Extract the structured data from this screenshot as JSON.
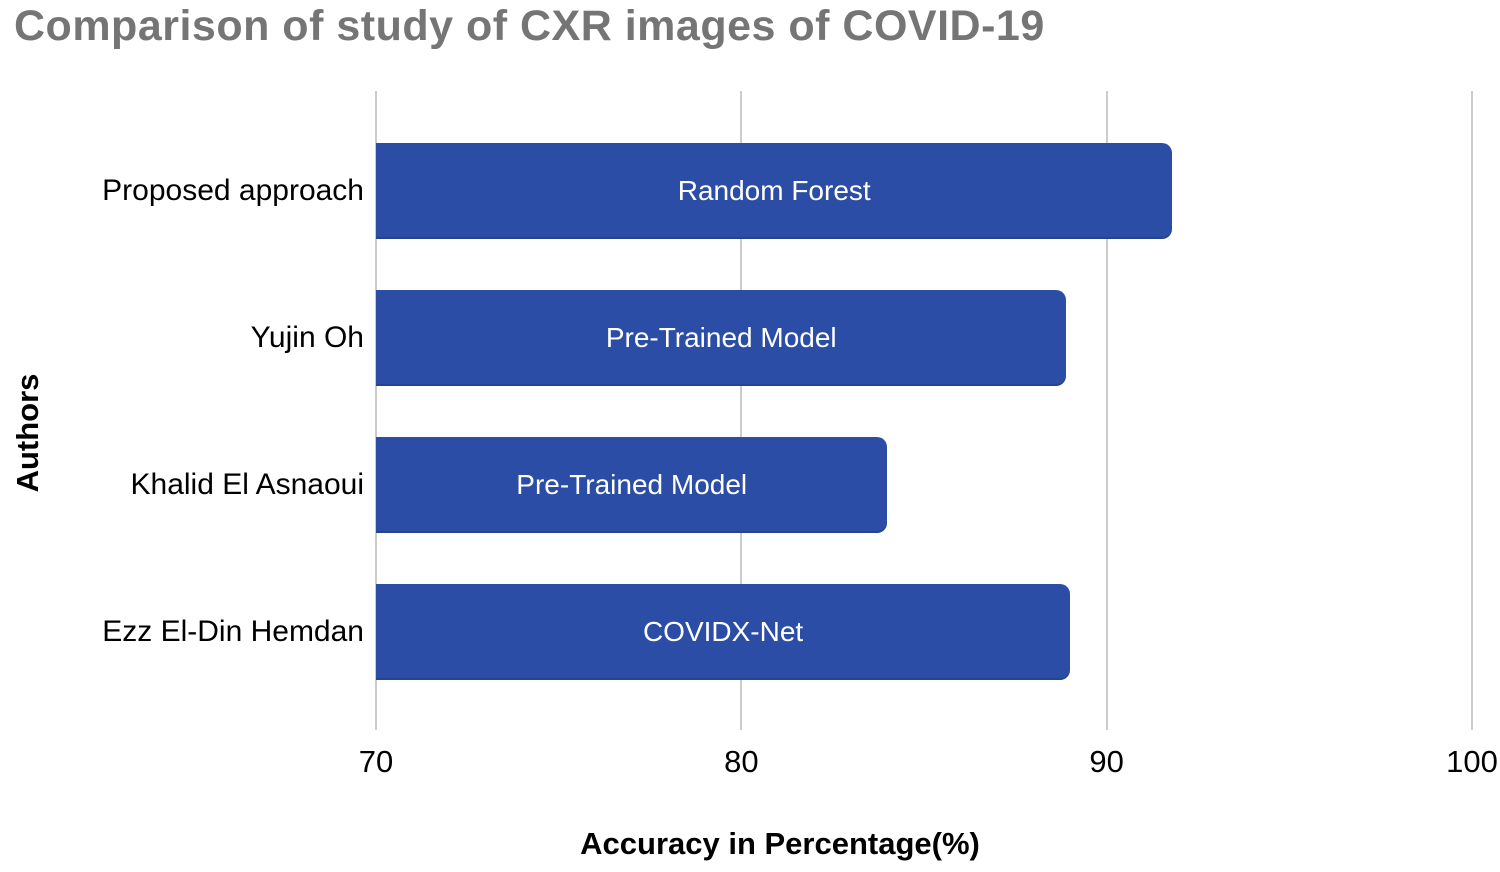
{
  "chart_data": {
    "type": "bar",
    "orientation": "horizontal",
    "title": "Comparison of study of CXR images of COVID-19",
    "categories": [
      "Proposed approach",
      "Yujin Oh",
      "Khalid El Asnaoui",
      "Ezz El-Din Hemdan"
    ],
    "values": [
      91.8,
      88.9,
      84,
      89
    ],
    "bar_labels": [
      "Random Forest",
      "Pre-Trained Model",
      "Pre-Trained Model",
      "COVIDX-Net"
    ],
    "xlabel": "Accuracy in Percentage(%)",
    "ylabel": "Authors",
    "xlim": [
      70,
      100
    ],
    "xticks": [
      "70",
      "80",
      "90",
      "100"
    ],
    "grid": "vertical gridlines only",
    "legend": "none",
    "colors": {
      "bar": "#2b4da6",
      "bar_label_text": "#ffffff",
      "title_text": "#757575",
      "axis_text": "#000000",
      "gridline": "#cccccc",
      "background": "#ffffff"
    }
  }
}
